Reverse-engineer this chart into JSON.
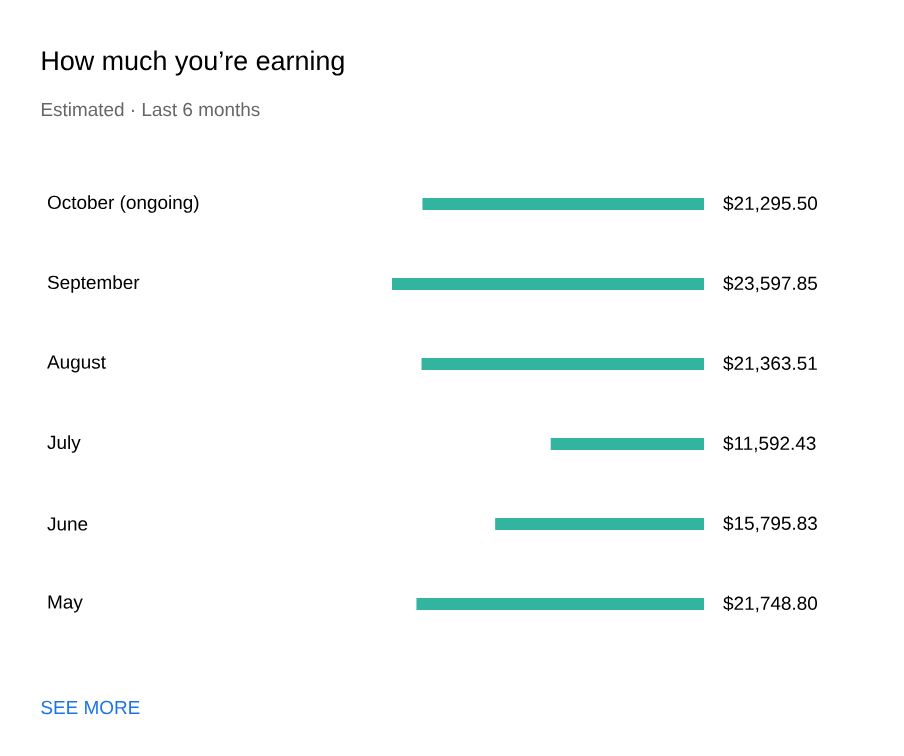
{
  "chart_data": {
    "type": "bar",
    "orientation": "horizontal",
    "title": "How much you’re earning",
    "subtitle": "Estimated · Last 6 months",
    "categories": [
      "October (ongoing)",
      "September",
      "August",
      "July",
      "June",
      "May"
    ],
    "values": [
      21295.5,
      23597.85,
      21363.51,
      11592.43,
      15795.83,
      21748.8
    ],
    "value_labels": [
      "$21,295.50",
      "$23,597.85",
      "$21,363.51",
      "$11,592.43",
      "$15,795.83",
      "$21,748.80"
    ],
    "color": "#32b49f",
    "annotations": [
      "SEE MORE"
    ]
  }
}
